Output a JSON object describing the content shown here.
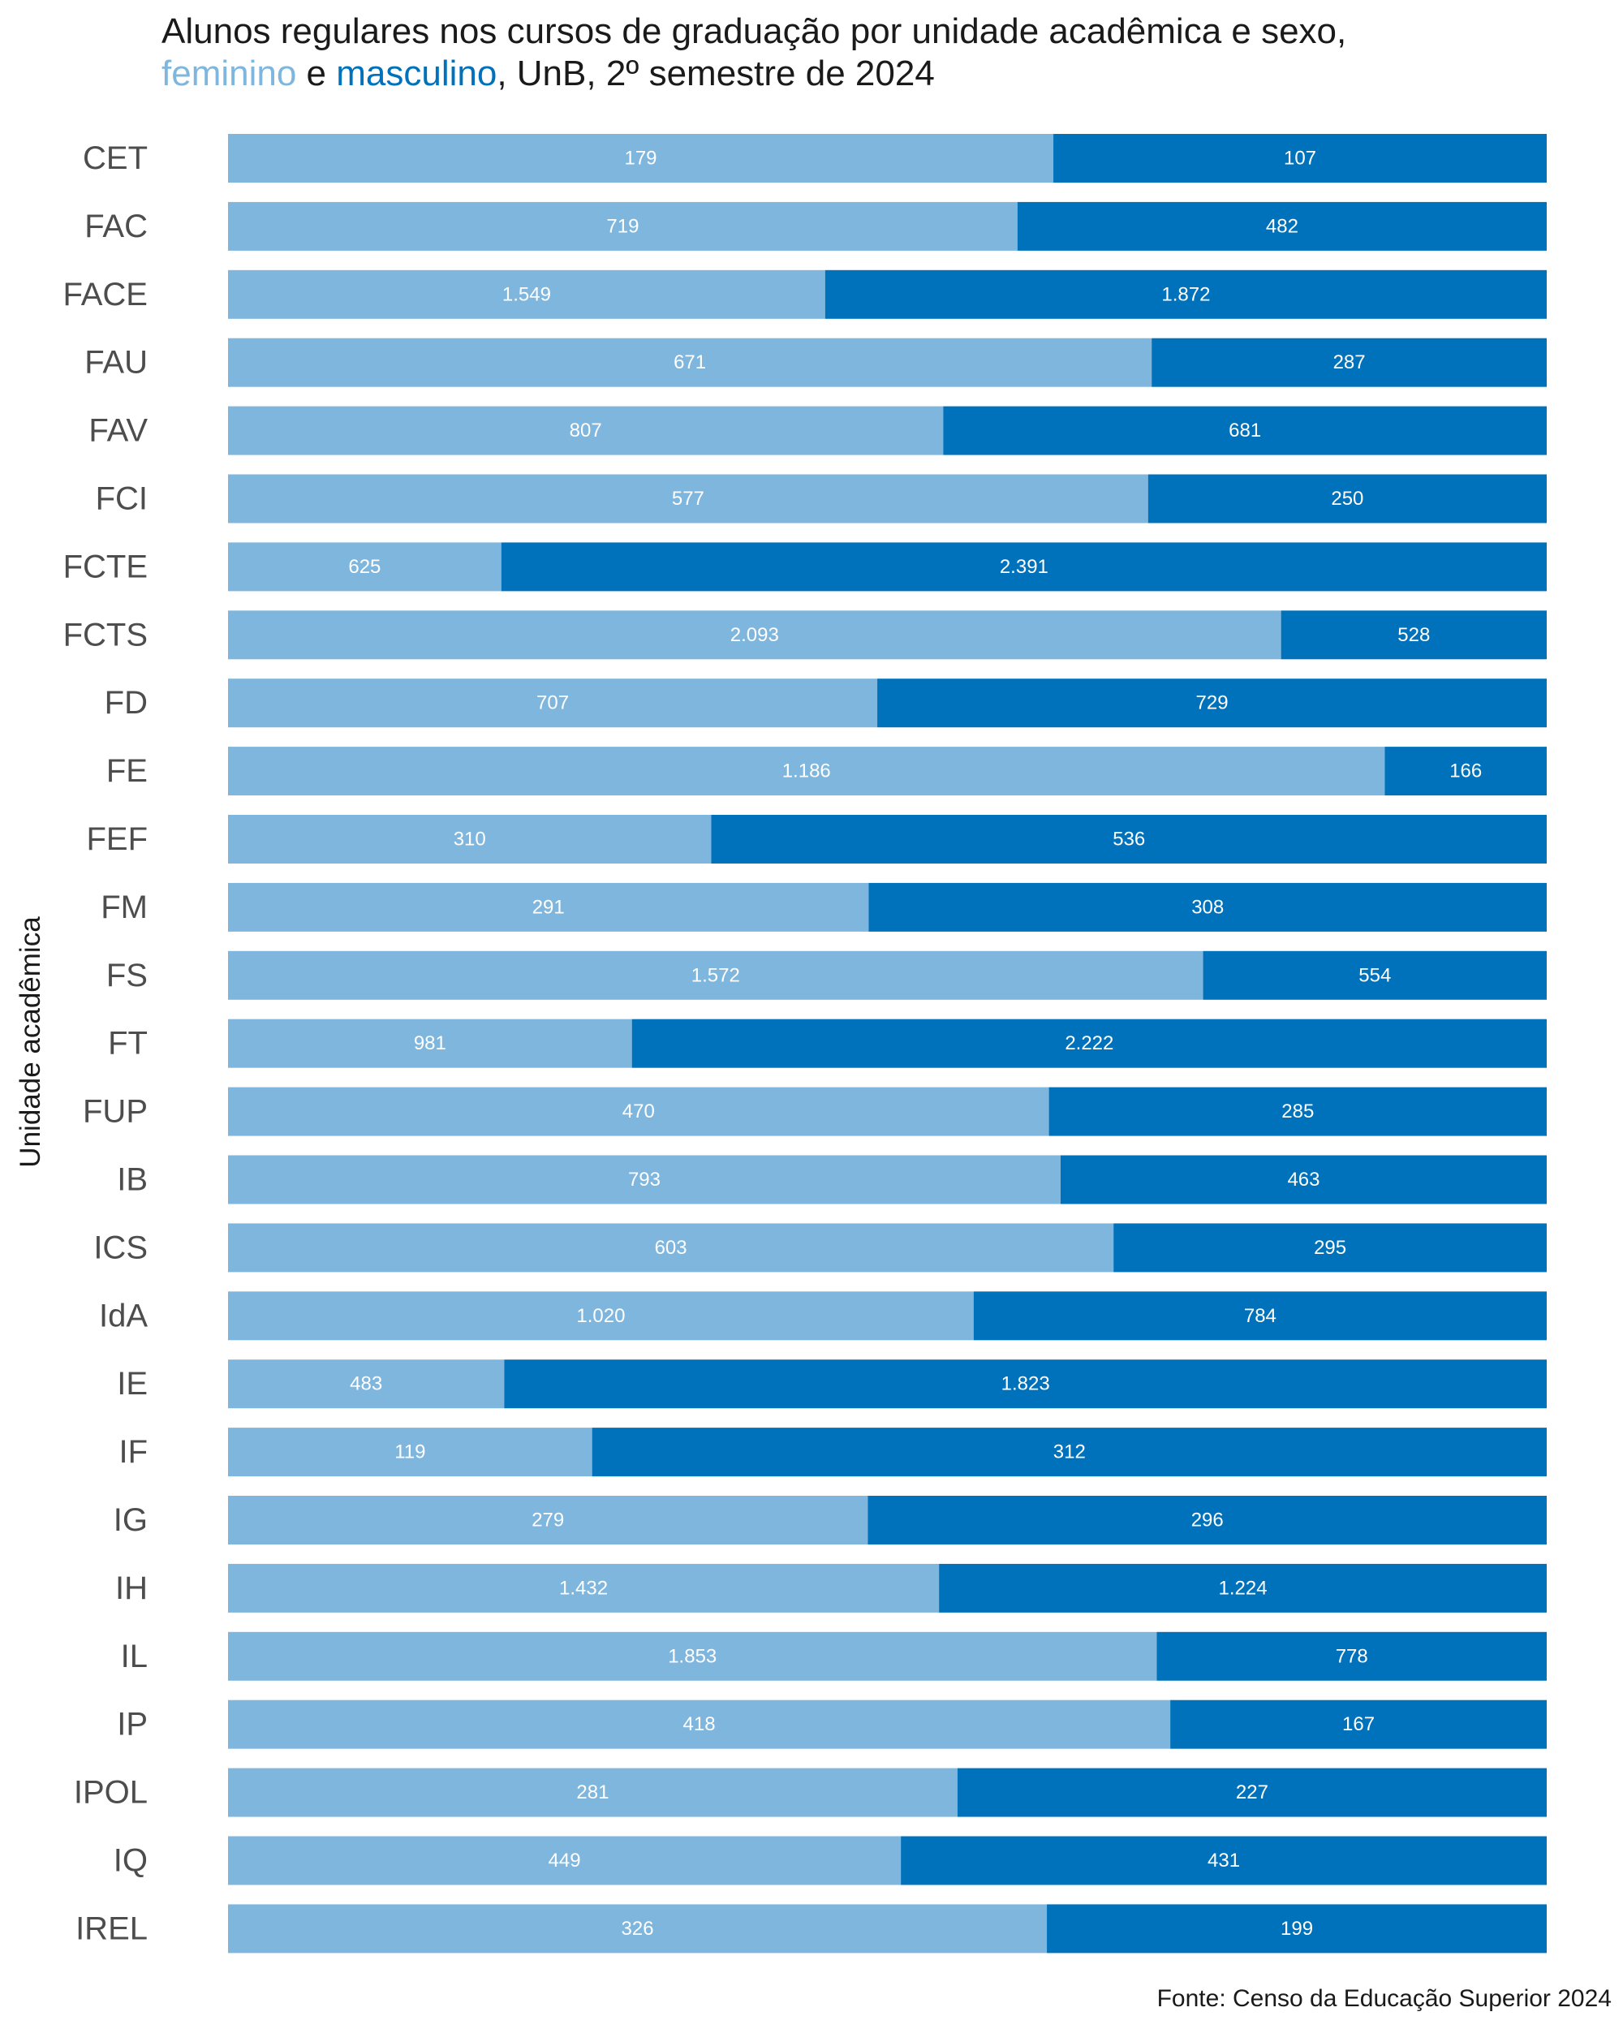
{
  "title": {
    "line1": "Alunos regulares nos cursos de graduação por unidade acadêmica e sexo,",
    "line2_fem": "feminino",
    "line2_and": " e ",
    "line2_masc": "masculino",
    "line2_rest": ", UnB, 2º semestre de 2024"
  },
  "source": "Fonte: Censo da Educação Superior 2024",
  "colors": {
    "feminino": "#7fb6dd",
    "masculino": "#0072bc"
  },
  "chart_data": {
    "type": "bar",
    "orientation": "horizontal",
    "stacking": "percent",
    "ylabel": "Unidade acadêmica",
    "xlabel": "",
    "categories": [
      "CET",
      "FAC",
      "FACE",
      "FAU",
      "FAV",
      "FCI",
      "FCTE",
      "FCTS",
      "FD",
      "FE",
      "FEF",
      "FM",
      "FS",
      "FT",
      "FUP",
      "IB",
      "ICS",
      "IdA",
      "IE",
      "IF",
      "IG",
      "IH",
      "IL",
      "IP",
      "IPOL",
      "IQ",
      "IREL"
    ],
    "series": [
      {
        "name": "feminino",
        "values": [
          179,
          719,
          1549,
          671,
          807,
          577,
          625,
          2093,
          707,
          1186,
          310,
          291,
          1572,
          981,
          470,
          793,
          603,
          1020,
          483,
          119,
          279,
          1432,
          1853,
          418,
          281,
          449,
          326
        ],
        "labels": [
          "179",
          "719",
          "1.549",
          "671",
          "807",
          "577",
          "625",
          "2.093",
          "707",
          "1.186",
          "310",
          "291",
          "1.572",
          "981",
          "470",
          "793",
          "603",
          "1.020",
          "483",
          "119",
          "279",
          "1.432",
          "1.853",
          "418",
          "281",
          "449",
          "326"
        ]
      },
      {
        "name": "masculino",
        "values": [
          107,
          482,
          1872,
          287,
          681,
          250,
          2391,
          528,
          729,
          166,
          536,
          308,
          554,
          2222,
          285,
          463,
          295,
          784,
          1823,
          312,
          296,
          1224,
          778,
          167,
          227,
          431,
          199
        ],
        "labels": [
          "107",
          "482",
          "1.872",
          "287",
          "681",
          "250",
          "2.391",
          "528",
          "729",
          "166",
          "536",
          "308",
          "554",
          "2.222",
          "285",
          "463",
          "295",
          "784",
          "1.823",
          "312",
          "296",
          "1.224",
          "778",
          "167",
          "227",
          "431",
          "199"
        ]
      }
    ],
    "grid": false,
    "legend": "none"
  }
}
